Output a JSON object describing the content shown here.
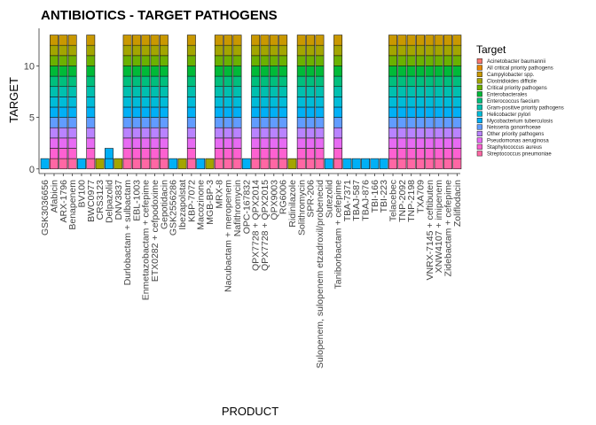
{
  "chart_data": {
    "type": "bar",
    "stacked": true,
    "title": "ANTIBIOTICS - TARGET PATHOGENS",
    "xlabel": "PRODUCT",
    "ylabel": "TARGET",
    "ylim": [
      0,
      13
    ],
    "yticks": [
      0,
      5,
      10
    ],
    "legend_title": "Target",
    "legend_position": "right",
    "grid": false,
    "targets": [
      {
        "name": "Acinetobacter baumannii",
        "color": "#F8766D"
      },
      {
        "name": "All critical priority pathogens",
        "color": "#E58700"
      },
      {
        "name": "Campylobacter spp.",
        "color": "#C99800"
      },
      {
        "name": "Clostridioides difficile",
        "color": "#A3A500"
      },
      {
        "name": "Critical priority pathogens",
        "color": "#6BB100"
      },
      {
        "name": "Enterobacterales",
        "color": "#00BA38"
      },
      {
        "name": "Enterococcus faecium",
        "color": "#00BF7D"
      },
      {
        "name": "Gram-positive priority pathogens",
        "color": "#00C0AF"
      },
      {
        "name": "Helicobacter pylori",
        "color": "#00BCD8"
      },
      {
        "name": "Mycobacterium tuberculosis",
        "color": "#00B0F6"
      },
      {
        "name": "Neisseria gonorrhoeae",
        "color": "#619CFF"
      },
      {
        "name": "Other priority pathogens",
        "color": "#B983FF"
      },
      {
        "name": "Pseudomonas aeruginosa",
        "color": "#E76BF3"
      },
      {
        "name": "Staphylococcus aureus",
        "color": "#FD61D1"
      },
      {
        "name": "Streptococcus pneumoniae",
        "color": "#FF67A4"
      }
    ],
    "bars": [
      {
        "product": "GSK3036656",
        "count": 1,
        "single": "Mycobacterium tuberculosis"
      },
      {
        "product": "Afabicin",
        "count": 13
      },
      {
        "product": "ARX-1796",
        "count": 13
      },
      {
        "product": "Benapenem",
        "count": 13
      },
      {
        "product": "BV100",
        "count": 1,
        "single": "Mycobacterium tuberculosis"
      },
      {
        "product": "BWC0977",
        "count": 13
      },
      {
        "product": "CRS3123",
        "count": 1,
        "single": "Clostridioides difficile"
      },
      {
        "product": "Delpazolid",
        "count": 2,
        "single": "Mycobacterium tuberculosis"
      },
      {
        "product": "DNV3837",
        "count": 1,
        "single": "Clostridioides difficile"
      },
      {
        "product": "Durlobactam + sulbactam",
        "count": 13
      },
      {
        "product": "EBL-1003",
        "count": 13
      },
      {
        "product": "Enmetazobactam + cefepime",
        "count": 13
      },
      {
        "product": "ETX0282 + cefpodoxime",
        "count": 13
      },
      {
        "product": "Gepotidacin",
        "count": 13
      },
      {
        "product": "GSK2556286",
        "count": 1,
        "single": "Mycobacterium tuberculosis"
      },
      {
        "product": "Ibezapolstat",
        "count": 1,
        "single": "Clostridioides difficile"
      },
      {
        "product": "KBP-7072",
        "count": 13
      },
      {
        "product": "Macozinone",
        "count": 1,
        "single": "Mycobacterium tuberculosis"
      },
      {
        "product": "MGB-BP-3",
        "count": 1,
        "single": "Clostridioides difficile"
      },
      {
        "product": "MRX-8",
        "count": 13
      },
      {
        "product": "Nacubactam + meropenem",
        "count": 13
      },
      {
        "product": "Nafithromycin",
        "count": 13
      },
      {
        "product": "OPC-167832",
        "count": 1,
        "single": "Mycobacterium tuberculosis"
      },
      {
        "product": "QPX7728 + QPX2014",
        "count": 13
      },
      {
        "product": "QPX7728 + QPX2015",
        "count": 13
      },
      {
        "product": "QPX9003",
        "count": 13
      },
      {
        "product": "RG6006",
        "count": 13
      },
      {
        "product": "Ridinilazole",
        "count": 1,
        "single": "Clostridioides difficile"
      },
      {
        "product": "Solithromycin",
        "count": 13
      },
      {
        "product": "SPR-206",
        "count": 13
      },
      {
        "product": "Sulopenem, sulopenem etzadroxil/probenecid",
        "count": 13
      },
      {
        "product": "Sutezolid",
        "count": 1,
        "single": "Mycobacterium tuberculosis"
      },
      {
        "product": "Taniborbactam + cefepime",
        "count": 13
      },
      {
        "product": "TBA-7371",
        "count": 1,
        "single": "Mycobacterium tuberculosis"
      },
      {
        "product": "TBAJ-587",
        "count": 1,
        "single": "Mycobacterium tuberculosis"
      },
      {
        "product": "TBAJ-876",
        "count": 1,
        "single": "Mycobacterium tuberculosis"
      },
      {
        "product": "TBI-166",
        "count": 1,
        "single": "Mycobacterium tuberculosis"
      },
      {
        "product": "TBI-223",
        "count": 1,
        "single": "Mycobacterium tuberculosis"
      },
      {
        "product": "Telacebec",
        "count": 13
      },
      {
        "product": "TNP-2092",
        "count": 13
      },
      {
        "product": "TNP-2198",
        "count": 13
      },
      {
        "product": "TXA709",
        "count": 13
      },
      {
        "product": "VNRX-7145 + ceftibuten",
        "count": 13
      },
      {
        "product": "XNW4107 + imipenem",
        "count": 13
      },
      {
        "product": "Zidebactam + cefepime",
        "count": 13
      },
      {
        "product": "Zoliflodacin",
        "count": 13
      }
    ]
  }
}
